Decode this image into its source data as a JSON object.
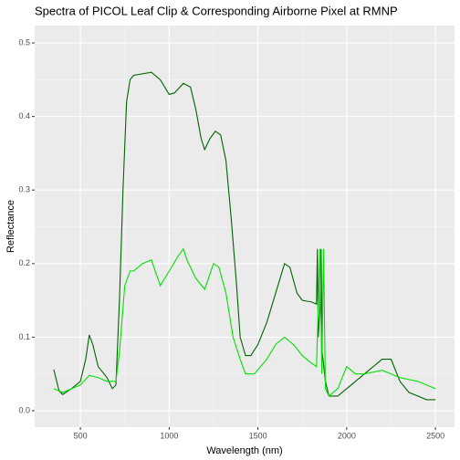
{
  "chart_data": {
    "type": "line",
    "title": "Spectra of PICOL Leaf Clip & Corresponding Airborne Pixel at RMNP",
    "x_label": "Wavelength (nm)",
    "y_label": "Reflectance",
    "xlim": [
      242.5,
      2607.5
    ],
    "xticks": [
      500,
      1000,
      1500,
      2000,
      2500
    ],
    "ylim": [
      -0.0223,
      0.5236
    ],
    "yticks": [
      {
        "value": 0,
        "label": "0.0"
      },
      0.1,
      0.2,
      0.3,
      0.4,
      0.5
    ],
    "grid": true,
    "series": [
      {
        "color": "#006400",
        "x": [
          350,
          380,
          400,
          450,
          500,
          530,
          550,
          570,
          600,
          650,
          680,
          700,
          720,
          740,
          760,
          780,
          800,
          900,
          950,
          1000,
          1030,
          1080,
          1120,
          1150,
          1180,
          1200,
          1230,
          1260,
          1290,
          1320,
          1350,
          1380,
          1400,
          1430,
          1460,
          1500,
          1550,
          1600,
          1650,
          1680,
          1720,
          1750,
          1800,
          1830,
          1835,
          1840,
          1850,
          1856,
          1862,
          1880,
          1900,
          1950,
          2000,
          2100,
          2200,
          2250,
          2300,
          2350,
          2400,
          2450,
          2500
        ],
        "values": [
          0.056,
          0.027,
          0.022,
          0.03,
          0.04,
          0.07,
          0.103,
          0.09,
          0.06,
          0.045,
          0.03,
          0.035,
          0.15,
          0.3,
          0.42,
          0.45,
          0.456,
          0.46,
          0.45,
          0.43,
          0.432,
          0.445,
          0.44,
          0.41,
          0.37,
          0.355,
          0.37,
          0.38,
          0.375,
          0.34,
          0.26,
          0.17,
          0.1,
          0.075,
          0.075,
          0.09,
          0.12,
          0.16,
          0.2,
          0.195,
          0.16,
          0.15,
          0.148,
          0.145,
          0.22,
          0.1,
          0.14,
          0.22,
          0.08,
          0.04,
          0.02,
          0.02,
          0.03,
          0.05,
          0.07,
          0.07,
          0.04,
          0.025,
          0.02,
          0.015,
          0.015
        ]
      },
      {
        "color": "#00e000",
        "x": [
          350,
          400,
          450,
          500,
          550,
          600,
          650,
          700,
          720,
          750,
          780,
          800,
          850,
          900,
          950,
          1000,
          1050,
          1080,
          1100,
          1150,
          1200,
          1250,
          1280,
          1320,
          1360,
          1400,
          1430,
          1480,
          1550,
          1600,
          1650,
          1700,
          1750,
          1800,
          1830,
          1850,
          1860,
          1870,
          1880,
          1900,
          1950,
          2000,
          2050,
          2100,
          2200,
          2300,
          2400,
          2500
        ],
        "values": [
          0.03,
          0.025,
          0.03,
          0.035,
          0.048,
          0.045,
          0.04,
          0.04,
          0.08,
          0.17,
          0.19,
          0.19,
          0.2,
          0.205,
          0.17,
          0.19,
          0.21,
          0.22,
          0.205,
          0.18,
          0.165,
          0.2,
          0.195,
          0.16,
          0.1,
          0.07,
          0.05,
          0.05,
          0.07,
          0.09,
          0.1,
          0.09,
          0.075,
          0.065,
          0.06,
          0.22,
          0.05,
          0.22,
          0.03,
          0.02,
          0.03,
          0.06,
          0.05,
          0.05,
          0.055,
          0.045,
          0.04,
          0.03
        ]
      }
    ]
  }
}
